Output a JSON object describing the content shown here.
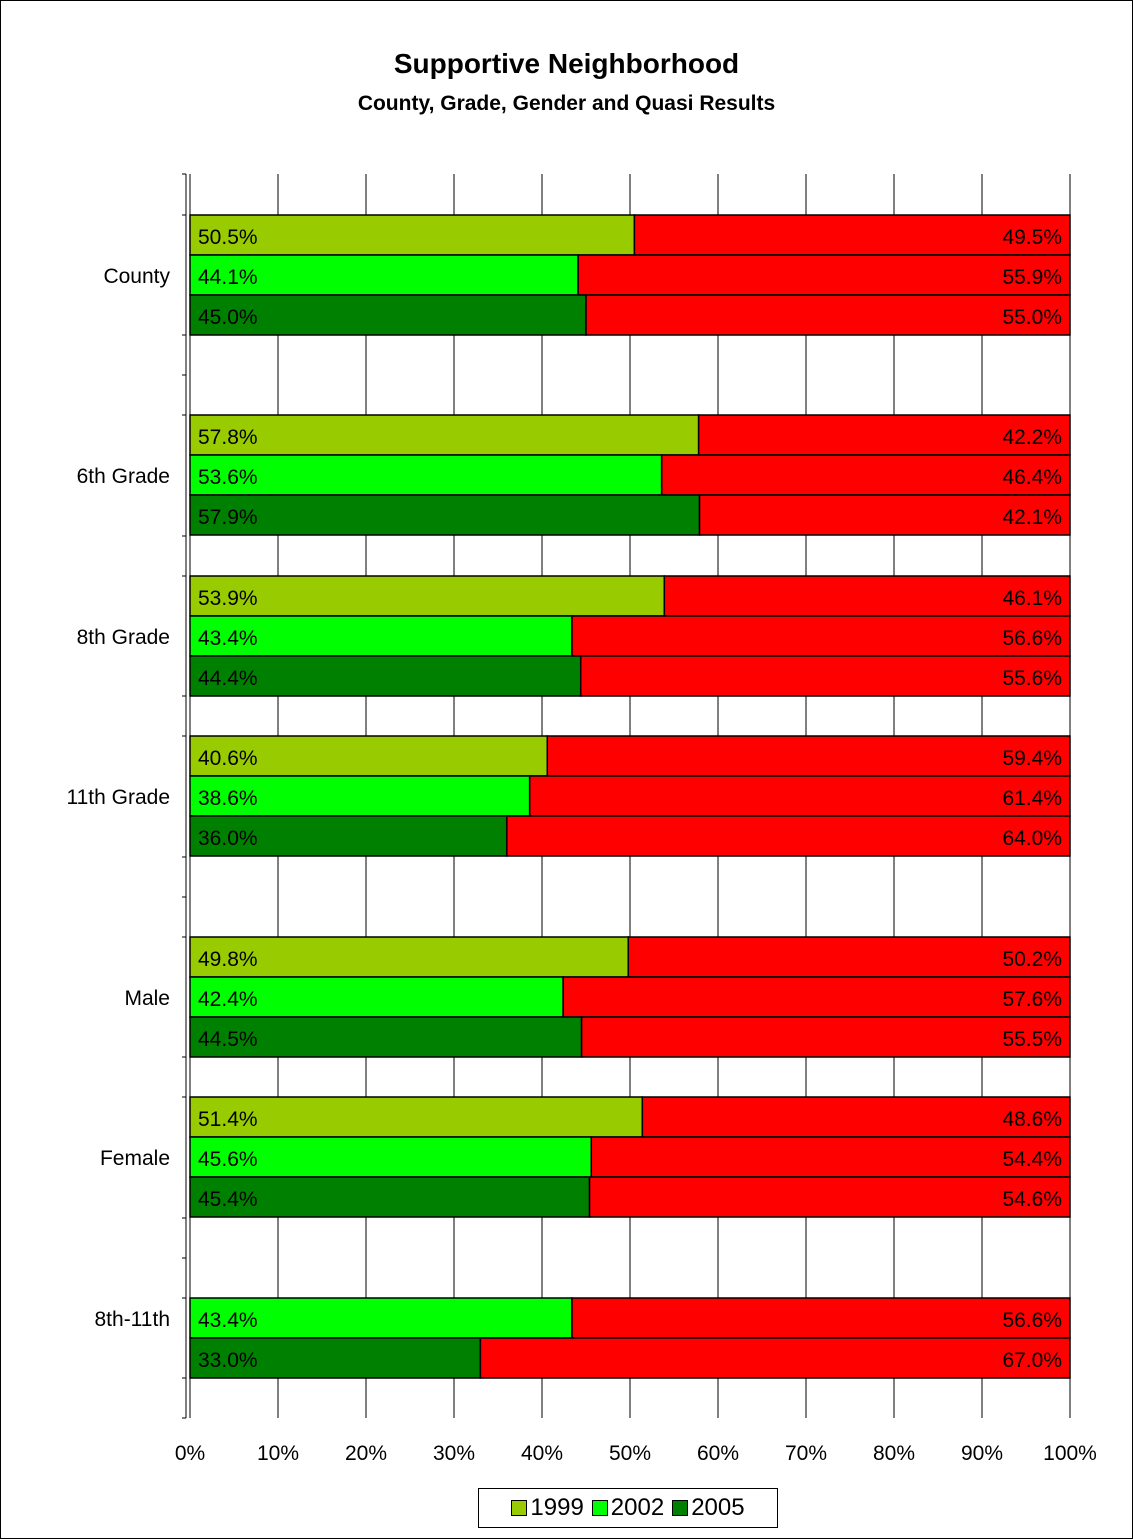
{
  "chart_data": {
    "type": "bar",
    "orientation": "horizontal",
    "stacked": "100%",
    "title": "Supportive Neighborhood",
    "subtitle": "County, Grade, Gender and Quasi Results",
    "categories": [
      "County",
      "6th Grade",
      "8th Grade",
      "11th Grade",
      "Male",
      "Female",
      "8th-11th"
    ],
    "series": [
      {
        "name": "1999",
        "color": "#99CC00",
        "values": [
          50.5,
          57.8,
          53.9,
          40.6,
          49.8,
          51.4,
          null
        ],
        "complement": [
          49.5,
          42.2,
          46.1,
          59.4,
          50.2,
          48.6,
          null
        ]
      },
      {
        "name": "2002",
        "color": "#00FF00",
        "values": [
          44.1,
          53.6,
          43.4,
          38.6,
          42.4,
          45.6,
          43.4
        ],
        "complement": [
          55.9,
          46.4,
          56.6,
          61.4,
          57.6,
          54.4,
          56.6
        ]
      },
      {
        "name": "2005",
        "color": "#008000",
        "values": [
          45.0,
          57.9,
          44.4,
          36.0,
          44.5,
          45.4,
          33.0
        ],
        "complement": [
          55.0,
          42.1,
          55.6,
          64.0,
          55.5,
          54.6,
          67.0
        ]
      }
    ],
    "complement_color": "#FF0000",
    "xlim": [
      0,
      100
    ],
    "x_ticks": [
      "0%",
      "10%",
      "20%",
      "30%",
      "40%",
      "50%",
      "60%",
      "70%",
      "80%",
      "90%",
      "100%"
    ],
    "grid": "vertical",
    "legend": "bottom"
  }
}
